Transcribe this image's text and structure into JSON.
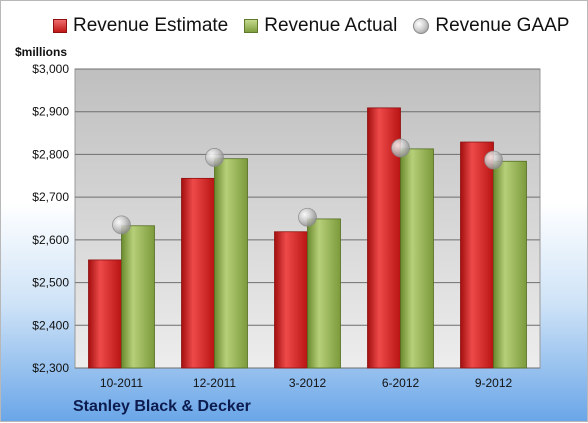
{
  "chart_data": {
    "type": "bar",
    "categories": [
      "10-2011",
      "12-2011",
      "3-2012",
      "6-2012",
      "9-2012"
    ],
    "series": [
      {
        "name": "Revenue Estimate",
        "values": [
          2553,
          2744,
          2619,
          2909,
          2829
        ],
        "color": "#c81b1b"
      },
      {
        "name": "Revenue Actual",
        "values": [
          2633,
          2790,
          2649,
          2813,
          2784
        ],
        "color": "#8aa84a"
      },
      {
        "name": "Revenue GAAP",
        "values": [
          2635,
          2793,
          2653,
          2815,
          2787
        ],
        "color": "#bdbdbd",
        "marker": "circle"
      }
    ],
    "ylabel": "$millions",
    "ylim": [
      2300,
      3000
    ],
    "yticks": [
      "$2,300",
      "$2,400",
      "$2,500",
      "$2,600",
      "$2,700",
      "$2,800",
      "$2,900",
      "$3,000"
    ],
    "grid": true,
    "legend_position": "top"
  },
  "legend": {
    "estimate": "Revenue Estimate",
    "actual": "Revenue Actual",
    "gaap": "Revenue GAAP"
  },
  "unit_label": "$millions",
  "company": "Stanley Black & Decker"
}
